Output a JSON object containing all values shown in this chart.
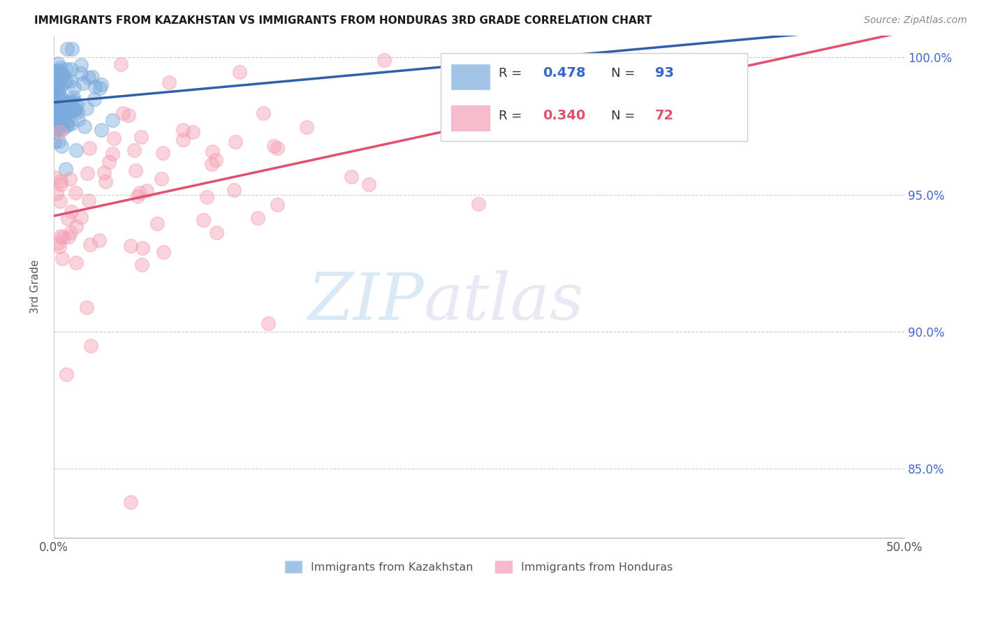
{
  "title": "IMMIGRANTS FROM KAZAKHSTAN VS IMMIGRANTS FROM HONDURAS 3RD GRADE CORRELATION CHART",
  "source_text": "Source: ZipAtlas.com",
  "ylabel": "3rd Grade",
  "legend_label1": "Immigrants from Kazakhstan",
  "legend_label2": "Immigrants from Honduras",
  "r1": 0.478,
  "n1": 93,
  "r2": 0.34,
  "n2": 72,
  "color1": "#7aabdc",
  "color2": "#f4a0b5",
  "trendline1_color": "#3060aa",
  "trendline2_color": "#e05070",
  "x_min": 0.0,
  "x_max": 0.5,
  "y_min": 0.825,
  "y_max": 1.008,
  "x_ticks": [
    0.0,
    0.1,
    0.2,
    0.3,
    0.4,
    0.5
  ],
  "x_tick_labels": [
    "0.0%",
    "",
    "",
    "",
    "",
    "50.0%"
  ],
  "y_ticks": [
    0.85,
    0.9,
    0.95,
    1.0
  ],
  "y_tick_labels": [
    "85.0%",
    "90.0%",
    "95.0%",
    "100.0%"
  ],
  "watermark_zip": "ZIP",
  "watermark_atlas": "atlas"
}
